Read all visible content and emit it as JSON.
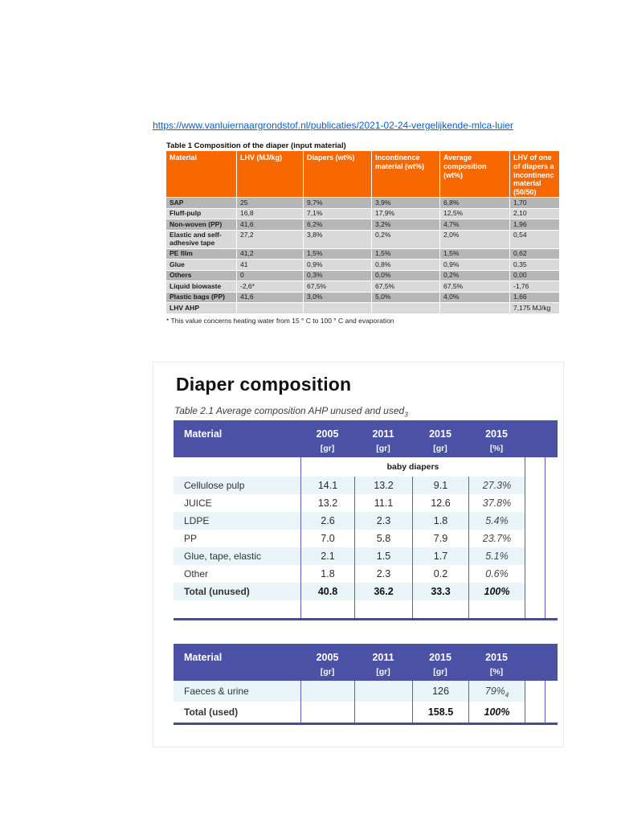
{
  "colors": {
    "orange_header": "#f76900",
    "blue_header": "#4b51a5",
    "row_tint": "#e8f4f7",
    "row_gray_dark": "#b6b6b6",
    "row_gray_light": "#d9d9d9",
    "link_blue": "#0b5cc4"
  },
  "link": {
    "url_text": "https://www.vanluiernaargrondstof.nl/publicaties/2021-02-24-vergelijkende-mlca-luier"
  },
  "table1": {
    "caption": "Table 1 Composition of the diaper (input material)",
    "columns": [
      "Material",
      "LHV (MJ/kg)",
      "Diapers (wt%)",
      "Incontinence material (wt%)",
      "Average composition (wt%)",
      "LHV of one\nof diapers a\nincontinenc\nmaterial\n(50/50)"
    ],
    "rows": [
      {
        "material": "SAP",
        "values": [
          "25",
          "9,7%",
          "3,9%",
          "6,8%",
          "1,70"
        ]
      },
      {
        "material": "Fluff-pulp",
        "values": [
          "16,8",
          "7,1%",
          "17,9%",
          "12,5%",
          "2,10"
        ]
      },
      {
        "material": "Non-woven (PP)",
        "values": [
          "41,6",
          "6,2%",
          "3,2%",
          "4,7%",
          "1,96"
        ]
      },
      {
        "material": "Elastic and self-adhesive tape",
        "values": [
          "27,2",
          "3,8%",
          "0,2%",
          "2,0%",
          "0,54"
        ]
      },
      {
        "material": "PE film",
        "values": [
          "41,2",
          "1,5%",
          "1,5%",
          "1,5%",
          "0,62"
        ]
      },
      {
        "material": "Glue",
        "values": [
          "41",
          "0,9%",
          "0,8%",
          "0,9%",
          "0,35"
        ]
      },
      {
        "material": "Others",
        "values": [
          "0",
          "0,3%",
          "0,0%",
          "0,2%",
          "0,00"
        ]
      },
      {
        "material": "Liquid biowaste",
        "values": [
          "-2,6*",
          "67,5%",
          "67,5%",
          "67,5%",
          "-1,76"
        ]
      },
      {
        "material": "Plastic bags (PP)",
        "values": [
          "41,6",
          "3,0%",
          "5,0%",
          "4,0%",
          "1,66"
        ]
      },
      {
        "material": "LHV AHP",
        "values": [
          "",
          "",
          "",
          "",
          "7,175 MJ/kg"
        ]
      }
    ],
    "footnote": "* This value concerns heating water from 15 ° C to 100 ° C and evaporation"
  },
  "section": {
    "title": "Diaper composition",
    "table_caption": "Table 2.1 Average composition AHP unused and used",
    "table_caption_note": "3"
  },
  "unused_table": {
    "material_header": "Material",
    "years": [
      "2005",
      "2011",
      "2015",
      "2015"
    ],
    "units": [
      "[gr]",
      "[gr]",
      "[gr]",
      "[%]"
    ],
    "group_label": "baby diapers",
    "rows": [
      {
        "material": "Cellulose pulp",
        "v2005": "14.1",
        "v2011": "13.2",
        "v2015": "9.1",
        "pct": "27.3%"
      },
      {
        "material": "JUICE",
        "v2005": "13.2",
        "v2011": "11.1",
        "v2015": "12.6",
        "pct": "37.8%"
      },
      {
        "material": "LDPE",
        "v2005": "2.6",
        "v2011": "2.3",
        "v2015": "1.8",
        "pct": "5.4%"
      },
      {
        "material": "PP",
        "v2005": "7.0",
        "v2011": "5.8",
        "v2015": "7.9",
        "pct": "23.7%"
      },
      {
        "material": "Glue, tape, elastic",
        "v2005": "2.1",
        "v2011": "1.5",
        "v2015": "1.7",
        "pct": "5.1%"
      },
      {
        "material": "Other",
        "v2005": "1.8",
        "v2011": "2.3",
        "v2015": "0.2",
        "pct": "0.6%"
      },
      {
        "material": "Total (unused)",
        "v2005": "40.8",
        "v2011": "36.2",
        "v2015": "33.3",
        "pct": "100%"
      }
    ]
  },
  "used_table": {
    "material_header": "Material",
    "years": [
      "2005",
      "2011",
      "2015",
      "2015"
    ],
    "units": [
      "[gr]",
      "[gr]",
      "[gr]",
      "[%]"
    ],
    "rows": [
      {
        "material": "Faeces & urine",
        "v2005": "",
        "v2011": "",
        "v2015": "126",
        "pct": "79%",
        "pct_note": "4"
      },
      {
        "material": "Total (used)",
        "v2005": "",
        "v2011": "",
        "v2015": "158.5",
        "pct": "100%",
        "pct_note": ""
      }
    ]
  }
}
